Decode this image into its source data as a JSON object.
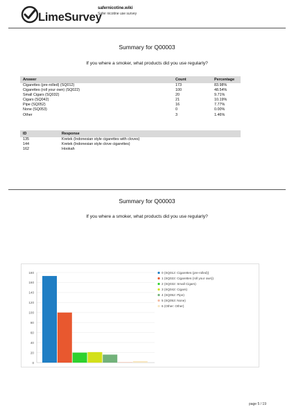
{
  "header": {
    "logo_text": "LimeSurvey",
    "site_name": "safernicotine.wiki",
    "survey_title": "Safer nicotine use survey"
  },
  "sections": [
    {
      "title": "Summary for Q00003",
      "question": "If you where a smoker, what products did you use regularly?"
    },
    {
      "title": "Summary for Q00003",
      "question": "If you where a smoker, what products did you use regularly?"
    }
  ],
  "summary_table": {
    "headers": [
      "Answer",
      "Count",
      "Percentage"
    ],
    "rows": [
      [
        "Cigarettes (pre-rolled) (SQ012)",
        "173",
        "83.98%"
      ],
      [
        "Cigarettes (roll your own) (SQ022)",
        "100",
        "48.54%"
      ],
      [
        "Small Cigars (SQ032)",
        "20",
        "9.71%"
      ],
      [
        "Cigars (SQ042)",
        "21",
        "10.19%"
      ],
      [
        "Pipe (SQ052)",
        "16",
        "7.77%"
      ],
      [
        "None (SQ053)",
        "0",
        "0.00%"
      ],
      [
        "Other",
        "3",
        "1.46%"
      ]
    ]
  },
  "response_table": {
    "headers": [
      "ID",
      "Response"
    ],
    "rows": [
      [
        "135",
        "Kretek (Indonesian style cigarettes with cloves)"
      ],
      [
        "144",
        "Kretek (Indonesian style clove cigarettes)"
      ],
      [
        "162",
        "Hookah"
      ]
    ]
  },
  "chart_data": {
    "type": "bar",
    "categories": [
      "0 (SQ012: Cigarettes (pre-rolled))",
      "1 (SQ022: Cigarettes (roll your own))",
      "2 (SQ032: Small Cigars)",
      "3 (SQ042: Cigars)",
      "4 (SQ052: Pipe)",
      "5 (SQ053: None)",
      "6 (Other: Other)"
    ],
    "values": [
      173,
      100,
      20,
      21,
      16,
      0,
      3
    ],
    "colors": [
      "#1f7ec4",
      "#e8582f",
      "#2ed12e",
      "#d3e01a",
      "#72b27a",
      "#f2b8a0",
      "#f7e6c0"
    ],
    "yticks": [
      0,
      20,
      40,
      60,
      80,
      100,
      120,
      140,
      160,
      180
    ],
    "ylim": [
      0,
      180
    ],
    "legend_position": "right",
    "grid": true
  },
  "footer": {
    "page": "page 5 / 19"
  }
}
